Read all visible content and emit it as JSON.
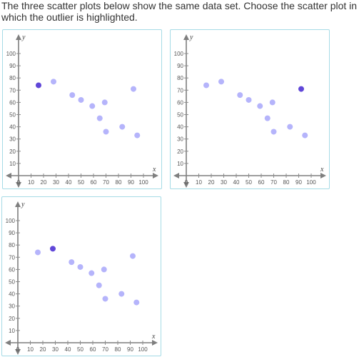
{
  "prompt": "The three scatter plots below show the same data set. Choose the scatter plot in which the outlier is highlighted.",
  "colors": {
    "point": "#b5b4fb",
    "highlight": "#6047d8",
    "card_border": "#a6dbe6",
    "axis": "#7f7f7f"
  },
  "chart_data": [
    {
      "type": "scatter",
      "xlabel": "x",
      "ylabel": "y",
      "xlim": [
        0,
        100
      ],
      "ylim": [
        0,
        100
      ],
      "x_ticks": [
        "0",
        "10",
        "20",
        "30",
        "40",
        "50",
        "60",
        "70",
        "80",
        "90",
        "100"
      ],
      "y_ticks": [
        "10",
        "20",
        "30",
        "40",
        "50",
        "60",
        "70",
        "80",
        "90",
        "100"
      ],
      "points": [
        {
          "x": 16,
          "y": 74,
          "highlighted": true
        },
        {
          "x": 28,
          "y": 77,
          "highlighted": false
        },
        {
          "x": 43,
          "y": 66,
          "highlighted": false
        },
        {
          "x": 50,
          "y": 62,
          "highlighted": false
        },
        {
          "x": 59,
          "y": 57,
          "highlighted": false
        },
        {
          "x": 65,
          "y": 47,
          "highlighted": false
        },
        {
          "x": 69,
          "y": 60,
          "highlighted": false
        },
        {
          "x": 70,
          "y": 36,
          "highlighted": false
        },
        {
          "x": 83,
          "y": 40,
          "highlighted": false
        },
        {
          "x": 92,
          "y": 71,
          "highlighted": false
        },
        {
          "x": 95,
          "y": 33,
          "highlighted": false
        }
      ]
    },
    {
      "type": "scatter",
      "xlabel": "x",
      "ylabel": "y",
      "xlim": [
        0,
        100
      ],
      "ylim": [
        0,
        100
      ],
      "x_ticks": [
        "0",
        "10",
        "20",
        "30",
        "40",
        "50",
        "60",
        "70",
        "80",
        "90",
        "100"
      ],
      "y_ticks": [
        "10",
        "20",
        "30",
        "40",
        "50",
        "60",
        "70",
        "80",
        "90",
        "100"
      ],
      "points": [
        {
          "x": 16,
          "y": 74,
          "highlighted": false
        },
        {
          "x": 28,
          "y": 77,
          "highlighted": false
        },
        {
          "x": 43,
          "y": 66,
          "highlighted": false
        },
        {
          "x": 50,
          "y": 62,
          "highlighted": false
        },
        {
          "x": 59,
          "y": 57,
          "highlighted": false
        },
        {
          "x": 65,
          "y": 47,
          "highlighted": false
        },
        {
          "x": 69,
          "y": 60,
          "highlighted": false
        },
        {
          "x": 70,
          "y": 36,
          "highlighted": false
        },
        {
          "x": 83,
          "y": 40,
          "highlighted": false
        },
        {
          "x": 92,
          "y": 71,
          "highlighted": true
        },
        {
          "x": 95,
          "y": 33,
          "highlighted": false
        }
      ]
    },
    {
      "type": "scatter",
      "xlabel": "x",
      "ylabel": "y",
      "xlim": [
        0,
        100
      ],
      "ylim": [
        0,
        100
      ],
      "x_ticks": [
        "0",
        "10",
        "20",
        "30",
        "40",
        "50",
        "60",
        "70",
        "80",
        "90",
        "100"
      ],
      "y_ticks": [
        "10",
        "20",
        "30",
        "40",
        "50",
        "60",
        "70",
        "80",
        "90",
        "100"
      ],
      "points": [
        {
          "x": 16,
          "y": 74,
          "highlighted": false
        },
        {
          "x": 28,
          "y": 77,
          "highlighted": true
        },
        {
          "x": 43,
          "y": 66,
          "highlighted": false
        },
        {
          "x": 50,
          "y": 62,
          "highlighted": false
        },
        {
          "x": 59,
          "y": 57,
          "highlighted": false
        },
        {
          "x": 65,
          "y": 47,
          "highlighted": false
        },
        {
          "x": 69,
          "y": 60,
          "highlighted": false
        },
        {
          "x": 70,
          "y": 36,
          "highlighted": false
        },
        {
          "x": 83,
          "y": 40,
          "highlighted": false
        },
        {
          "x": 92,
          "y": 71,
          "highlighted": false
        },
        {
          "x": 95,
          "y": 33,
          "highlighted": false
        }
      ]
    }
  ]
}
